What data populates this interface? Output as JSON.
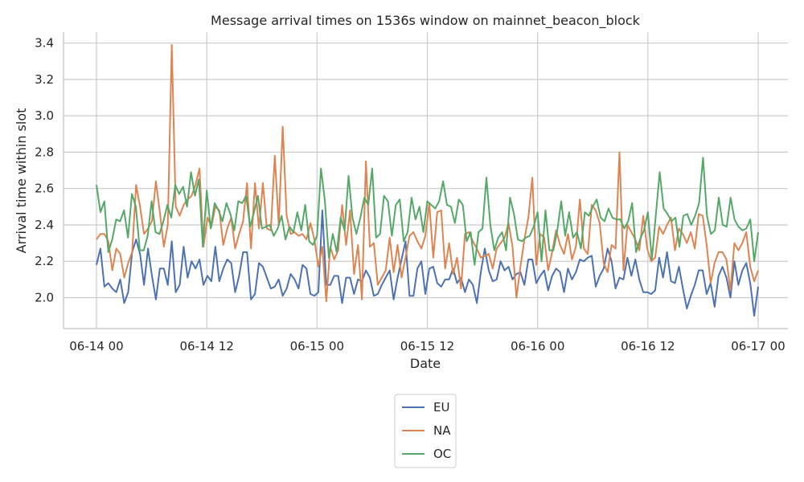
{
  "chart_data": {
    "type": "line",
    "title": "Message arrival times on 1536s window on mainnet_beacon_block",
    "xlabel": "Date",
    "ylabel": "Arrival time within slot",
    "x_start": "06-14 00",
    "x_end": "06-17 00",
    "x_ticks": [
      "06-14 00",
      "06-14 12",
      "06-15 00",
      "06-15 12",
      "06-16 00",
      "06-16 12",
      "06-17 00"
    ],
    "y_ticks": [
      "2.0",
      "2.2",
      "2.4",
      "2.6",
      "2.8",
      "3.0",
      "3.2",
      "3.4"
    ],
    "ylim": [
      1.83,
      3.46
    ],
    "grid": true,
    "legend_position": "bottom-center",
    "series": [
      {
        "name": "EU",
        "color": "#4c72b0",
        "values": [
          2.18,
          2.27,
          2.06,
          2.08,
          2.05,
          2.03,
          2.1,
          1.97,
          2.03,
          2.25,
          2.32,
          2.24,
          2.07,
          2.27,
          2.12,
          1.99,
          2.16,
          2.16,
          2.07,
          2.31,
          2.03,
          2.07,
          2.28,
          2.11,
          2.2,
          2.16,
          2.21,
          2.07,
          2.12,
          2.09,
          2.28,
          2.09,
          2.16,
          2.21,
          2.19,
          2.03,
          2.12,
          2.25,
          2.25,
          1.99,
          2.02,
          2.19,
          2.17,
          2.11,
          2.05,
          2.06,
          2.1,
          2.01,
          2.05,
          2.13,
          2.1,
          2.05,
          2.18,
          2.16,
          2.02,
          2.01,
          2.03,
          2.48,
          2.07,
          2.07,
          2.12,
          2.12,
          1.97,
          2.11,
          2.11,
          2.02,
          2.1,
          2.09,
          2.15,
          2.11,
          2.01,
          2.02,
          2.07,
          2.11,
          2.15,
          1.99,
          2.11,
          2.21,
          2.31,
          2.01,
          2.01,
          2.16,
          2.2,
          2.02,
          2.16,
          2.17,
          2.08,
          2.06,
          2.1,
          2.1,
          2.16,
          2.08,
          2.11,
          2.03,
          2.1,
          2.07,
          1.97,
          2.14,
          2.27,
          2.15,
          2.09,
          2.1,
          2.2,
          2.15,
          2.17,
          2.1,
          2.13,
          2.14,
          2.07,
          2.21,
          2.21,
          2.08,
          2.12,
          2.15,
          2.04,
          2.12,
          2.16,
          2.14,
          2.03,
          2.16,
          2.1,
          2.14,
          2.21,
          2.2,
          2.22,
          2.23,
          2.06,
          2.12,
          2.16,
          2.27,
          2.2,
          2.05,
          2.11,
          2.1,
          2.22,
          2.12,
          2.21,
          2.1,
          2.03,
          2.03,
          2.02,
          2.04,
          2.22,
          2.11,
          2.25,
          2.09,
          2.08,
          2.17,
          2.05,
          1.94,
          2.01,
          2.07,
          2.15,
          2.15,
          2.02,
          2.08,
          1.95,
          2.12,
          2.17,
          2.11,
          2.0,
          2.2,
          2.07,
          2.15,
          2.19,
          2.08,
          1.9,
          2.06
        ]
      },
      {
        "name": "NA",
        "color": "#dd8452",
        "values": [
          2.32,
          2.35,
          2.35,
          2.31,
          2.15,
          2.27,
          2.24,
          2.11,
          2.19,
          2.25,
          2.62,
          2.5,
          2.35,
          2.38,
          2.42,
          2.64,
          2.47,
          2.28,
          2.4,
          3.39,
          2.5,
          2.45,
          2.51,
          2.54,
          2.56,
          2.62,
          2.71,
          2.28,
          2.44,
          2.39,
          2.5,
          2.48,
          2.29,
          2.38,
          2.44,
          2.27,
          2.35,
          2.42,
          2.63,
          2.27,
          2.63,
          2.38,
          2.63,
          2.38,
          2.37,
          2.78,
          2.4,
          2.94,
          2.45,
          2.35,
          2.36,
          2.34,
          2.35,
          2.32,
          2.41,
          2.32,
          2.17,
          2.28,
          1.98,
          2.28,
          2.21,
          2.26,
          2.51,
          2.29,
          2.48,
          2.13,
          2.29,
          1.99,
          2.75,
          2.28,
          2.3,
          2.07,
          2.11,
          2.15,
          2.33,
          2.14,
          2.29,
          2.11,
          2.22,
          2.34,
          2.36,
          2.31,
          2.27,
          2.34,
          2.52,
          2.22,
          2.47,
          2.48,
          2.16,
          2.3,
          2.13,
          2.22,
          2.05,
          2.35,
          2.36,
          2.31,
          2.27,
          2.22,
          2.23,
          2.24,
          2.16,
          2.27,
          2.3,
          2.33,
          2.41,
          2.28,
          2.0,
          2.17,
          2.32,
          2.44,
          2.66,
          2.18,
          2.35,
          2.33,
          2.15,
          2.25,
          2.37,
          2.29,
          2.24,
          2.35,
          2.21,
          2.28,
          2.54,
          2.27,
          2.24,
          2.51,
          2.48,
          2.41,
          2.19,
          2.14,
          2.29,
          2.27,
          2.8,
          2.15,
          2.4,
          2.36,
          2.32,
          2.26,
          2.45,
          2.27,
          2.2,
          2.22,
          2.39,
          2.35,
          2.4,
          2.44,
          2.26,
          2.38,
          2.35,
          2.3,
          2.36,
          2.27,
          2.46,
          2.45,
          2.29,
          2.08,
          2.19,
          2.25,
          2.25,
          2.21,
          2.04,
          2.3,
          2.26,
          2.3,
          2.36,
          2.17,
          2.09,
          2.15
        ]
      },
      {
        "name": "OC",
        "color": "#55a868",
        "values": [
          2.62,
          2.47,
          2.53,
          2.25,
          2.32,
          2.43,
          2.42,
          2.48,
          2.33,
          2.57,
          2.5,
          2.26,
          2.26,
          2.34,
          2.53,
          2.36,
          2.35,
          2.42,
          2.51,
          2.44,
          2.62,
          2.57,
          2.61,
          2.5,
          2.69,
          2.56,
          2.65,
          2.28,
          2.59,
          2.38,
          2.52,
          2.48,
          2.42,
          2.52,
          2.46,
          2.37,
          2.53,
          2.52,
          2.56,
          2.39,
          2.47,
          2.56,
          2.38,
          2.39,
          2.4,
          2.34,
          2.38,
          2.45,
          2.32,
          2.39,
          2.36,
          2.47,
          2.37,
          2.51,
          2.31,
          2.29,
          2.34,
          2.71,
          2.53,
          2.22,
          2.35,
          2.25,
          2.44,
          2.37,
          2.67,
          2.44,
          2.35,
          2.44,
          2.55,
          2.51,
          2.71,
          2.33,
          2.35,
          2.56,
          2.53,
          2.34,
          2.51,
          2.54,
          2.31,
          2.36,
          2.55,
          2.43,
          2.5,
          2.36,
          2.53,
          2.51,
          2.49,
          2.53,
          2.64,
          2.51,
          2.5,
          2.41,
          2.54,
          2.51,
          2.31,
          2.36,
          2.18,
          2.36,
          2.38,
          2.66,
          2.4,
          2.26,
          2.33,
          2.36,
          2.26,
          2.55,
          2.46,
          2.32,
          2.31,
          2.33,
          2.34,
          2.39,
          2.47,
          2.2,
          2.48,
          2.26,
          2.26,
          2.37,
          2.53,
          2.34,
          2.47,
          2.33,
          2.36,
          2.27,
          2.47,
          2.45,
          2.5,
          2.54,
          2.44,
          2.42,
          2.49,
          2.44,
          2.43,
          2.43,
          2.38,
          2.42,
          2.52,
          2.25,
          2.32,
          2.37,
          2.47,
          2.21,
          2.45,
          2.69,
          2.49,
          2.46,
          2.42,
          2.44,
          2.28,
          2.45,
          2.46,
          2.4,
          2.45,
          2.52,
          2.77,
          2.45,
          2.35,
          2.37,
          2.55,
          2.4,
          2.39,
          2.55,
          2.43,
          2.39,
          2.37,
          2.38,
          2.43,
          2.2,
          2.36
        ]
      }
    ]
  }
}
